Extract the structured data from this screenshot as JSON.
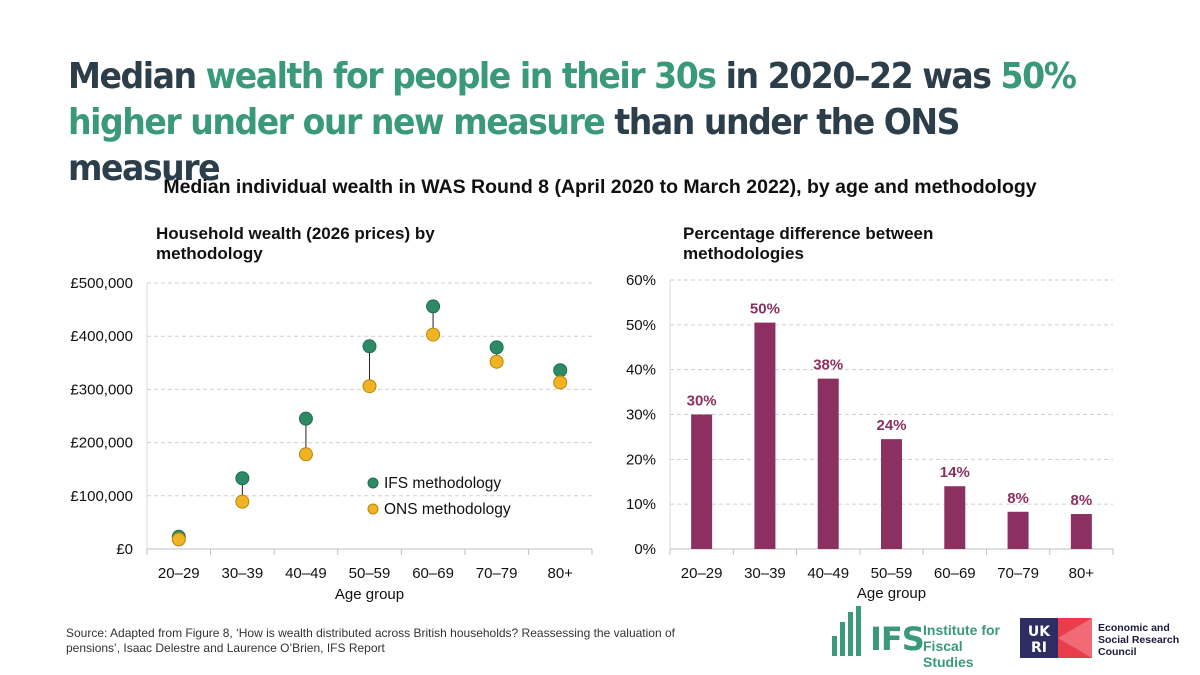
{
  "headline": {
    "p1": "Median ",
    "p2": "wealth for people in their 30s",
    "p3": " in 2020–22 was ",
    "p4": "50% higher under our new measure",
    "p5": " than under the ONS measure"
  },
  "subtitle": "Median individual wealth in WAS Round 8 (April 2020 to March 2022), by age and methodology",
  "source": "Source: Adapted from Figure 8, ‘How is wealth distributed across British households? Reassessing the valuation of pensions’, Isaac Delestre and Laurence O’Brien, IFS Report",
  "logos": {
    "ifs_mark": "IFS",
    "ifs_name": "Institute for Fiscal Studies",
    "ukri_mark": "UKRI",
    "esrc_name": "Economic and Social Research Council"
  },
  "colors": {
    "accent_green": "#3a9a78",
    "headline_dark": "#2c3e4a",
    "ifs_dot": "#2e8a66",
    "ons_dot": "#f0b323",
    "bar": "#8b3060"
  },
  "chart_data": [
    {
      "type": "scatter",
      "title": "Household wealth (2026 prices) by methodology",
      "xlabel": "Age group",
      "ylabel": "",
      "categories": [
        "20–29",
        "30–39",
        "40–49",
        "50–59",
        "60–69",
        "70–79",
        "80+"
      ],
      "ylim": [
        0,
        500000
      ],
      "yticks": [
        0,
        100000,
        200000,
        300000,
        400000,
        500000
      ],
      "ytick_labels": [
        "£0",
        "£100,000",
        "£200,000",
        "£300,000",
        "£400,000",
        "£500,000"
      ],
      "grid": true,
      "legend": "center-right",
      "series": [
        {
          "name": "IFS methodology",
          "color": "#2e8a66",
          "values": [
            23000,
            133000,
            245000,
            381000,
            456000,
            379000,
            336000
          ]
        },
        {
          "name": "ONS methodology",
          "color": "#f0b323",
          "values": [
            18000,
            89000,
            178000,
            306000,
            403000,
            352000,
            313000
          ]
        }
      ]
    },
    {
      "type": "bar",
      "title": "Percentage difference between methodologies",
      "xlabel": "Age group",
      "ylabel": "",
      "categories": [
        "20–29",
        "30–39",
        "40–49",
        "50–59",
        "60–69",
        "70–79",
        "80+"
      ],
      "values": [
        30,
        50.5,
        38,
        24.5,
        14,
        8.3,
        7.8
      ],
      "data_labels": [
        "30%",
        "50%",
        "38%",
        "24%",
        "14%",
        "8%",
        "8%"
      ],
      "ylim": [
        0,
        60
      ],
      "yticks": [
        0,
        10,
        20,
        30,
        40,
        50,
        60
      ],
      "ytick_labels": [
        "0%",
        "10%",
        "20%",
        "30%",
        "40%",
        "50%",
        "60%"
      ],
      "grid": true,
      "color": "#8b3060"
    }
  ]
}
